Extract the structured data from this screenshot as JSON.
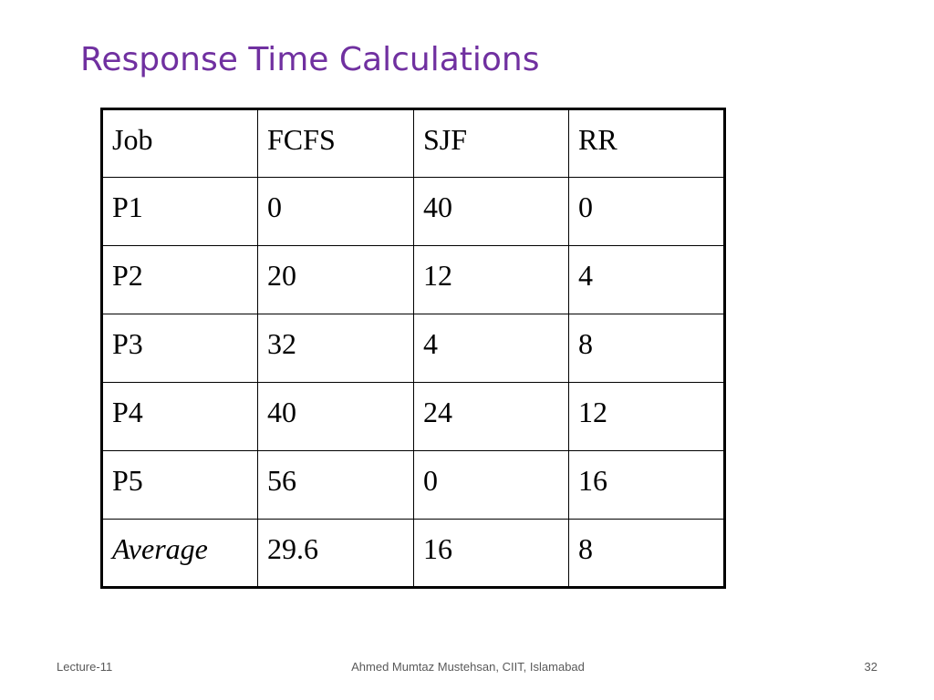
{
  "slide": {
    "title": "Response Time Calculations"
  },
  "table": {
    "headers": [
      "Job",
      "FCFS",
      "SJF",
      "RR"
    ],
    "rows": [
      [
        "P1",
        "0",
        "40",
        "0"
      ],
      [
        "P2",
        "20",
        "12",
        "4"
      ],
      [
        "P3",
        "32",
        "4",
        "8"
      ],
      [
        "P4",
        "40",
        "24",
        "12"
      ],
      [
        "P5",
        "56",
        "0",
        "16"
      ]
    ],
    "average": {
      "label": "Average",
      "values": [
        "29.6",
        "16",
        "8"
      ]
    }
  },
  "footer": {
    "left": "Lecture-11",
    "center": "Ahmed Mumtaz Mustehsan, CIIT, Islamabad",
    "page_number": "32"
  },
  "colors": {
    "title": "#7030a0",
    "table_border": "#000000",
    "footer_text": "#595959"
  }
}
